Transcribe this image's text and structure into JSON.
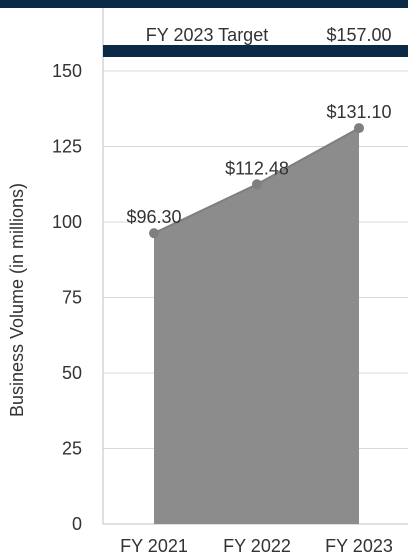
{
  "chart_data": {
    "type": "area",
    "categories": [
      "FY 2021",
      "FY 2022",
      "FY 2023"
    ],
    "values": [
      96.3,
      112.48,
      131.1
    ],
    "data_labels": [
      "$96.30",
      "$112.48",
      "$131.10"
    ],
    "ylabel": "Business Volume (in millions)",
    "xlabel": "",
    "ylim": [
      0,
      160
    ],
    "yticks": [
      0,
      25,
      50,
      75,
      100,
      125,
      150
    ],
    "grid": true,
    "target": {
      "label": "FY 2023 Target",
      "value_label": "$157.00",
      "value": 157
    },
    "colors": {
      "area": "#8c8c8c",
      "line": "#7f7f7f",
      "marker": "#7f7f7f",
      "target_line": "#0b2a45",
      "top_band": "#0b2a45",
      "grid": "#d9d9d9",
      "axis": "#bfbfbf",
      "text": "#333333"
    }
  }
}
